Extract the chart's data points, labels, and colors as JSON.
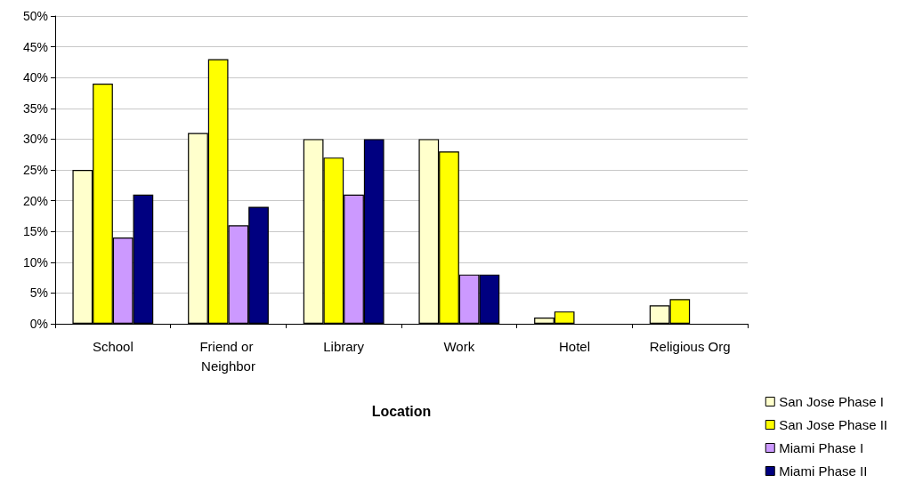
{
  "chart_data": {
    "type": "bar",
    "xlabel": "Location",
    "categories": [
      "School",
      "Friend or Neighbor",
      "Library",
      "Work",
      "Hotel",
      "Religious Org"
    ],
    "series": [
      {
        "name": "San Jose Phase I",
        "color": "#ffffcc",
        "values": [
          25,
          31,
          30,
          30,
          1,
          3
        ]
      },
      {
        "name": "San Jose Phase II",
        "color": "#ffff00",
        "values": [
          39,
          43,
          27,
          28,
          2,
          4
        ]
      },
      {
        "name": "Miami Phase I",
        "color": "#cc99ff",
        "values": [
          14,
          16,
          21,
          8,
          null,
          null
        ]
      },
      {
        "name": "Miami Phase II",
        "color": "#000080",
        "values": [
          21,
          19,
          30,
          8,
          null,
          null
        ]
      }
    ],
    "ylim": [
      0,
      50
    ],
    "yticks": [
      {
        "value": 0,
        "label": "0%"
      },
      {
        "value": 5,
        "label": "5%"
      },
      {
        "value": 10,
        "label": "10%"
      },
      {
        "value": 15,
        "label": "15%"
      },
      {
        "value": 20,
        "label": "20%"
      },
      {
        "value": 25,
        "label": "25%"
      },
      {
        "value": 30,
        "label": "30%"
      },
      {
        "value": 35,
        "label": "35%"
      },
      {
        "value": 40,
        "label": "40%"
      },
      {
        "value": 45,
        "label": "45%"
      },
      {
        "value": 50,
        "label": "50%"
      }
    ],
    "grid": "y",
    "legend": "bottom right"
  }
}
